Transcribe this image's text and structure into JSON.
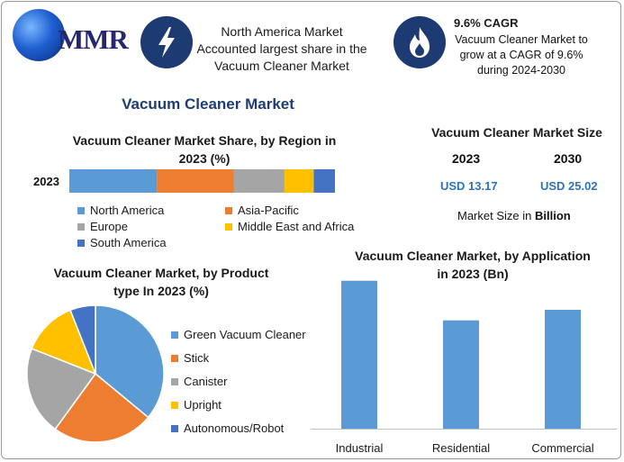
{
  "logo": {
    "text": "MMR"
  },
  "header": {
    "box1": {
      "icon": "lightning-bolt-icon",
      "lines": [
        "North America Market",
        "Accounted largest share in the",
        "Vacuum Cleaner Market"
      ]
    },
    "box2": {
      "icon": "flame-icon",
      "cagr": "9.6% CAGR",
      "lines": [
        "Vacuum Cleaner Market to",
        "grow at a CAGR of 9.6%",
        "during 2024-2030"
      ]
    }
  },
  "main_title": "Vacuum Cleaner Market",
  "market_size": {
    "title": "Vacuum Cleaner Market Size",
    "years": [
      "2023",
      "2030"
    ],
    "values": [
      "USD 13.17",
      "USD 25.02"
    ],
    "unit_prefix": "Market Size in ",
    "unit_bold": "Billion"
  },
  "colors": {
    "blue": "#5b9bd5",
    "orange": "#ed7d31",
    "gray": "#a5a5a5",
    "yellow": "#ffc000",
    "darkblue": "#4472c4",
    "navy": "#1d3b72"
  },
  "chart_data": [
    {
      "type": "bar",
      "orientation": "horizontal-stacked",
      "title_lines": [
        "Vacuum Cleaner Market Share, by Region in",
        "2023 (%)"
      ],
      "categories": [
        "2023"
      ],
      "series": [
        {
          "name": "North America",
          "values": [
            33
          ]
        },
        {
          "name": "Asia-Pacific",
          "values": [
            29
          ]
        },
        {
          "name": "Europe",
          "values": [
            19
          ]
        },
        {
          "name": "Middle East and Africa",
          "values": [
            11
          ]
        },
        {
          "name": "South America",
          "values": [
            8
          ]
        }
      ],
      "xlim": [
        0,
        100
      ],
      "legend": "bottom"
    },
    {
      "type": "pie",
      "title_lines": [
        "Vacuum Cleaner Market, by Product",
        "type In 2023 (%)"
      ],
      "labels": [
        "Green Vacuum Cleaner",
        "Stick",
        "Canister",
        "Upright",
        "Autonomous/Robot"
      ],
      "values": [
        36,
        24,
        21,
        13,
        6
      ],
      "legend": "right"
    },
    {
      "type": "bar",
      "title_lines": [
        "Vacuum Cleaner Market, by Application",
        "in 2023 (Bn)"
      ],
      "categories": [
        "Industrial",
        "Residential",
        "Commercial"
      ],
      "values": [
        5.6,
        4.1,
        4.5
      ],
      "ylim": [
        0,
        6
      ]
    }
  ]
}
